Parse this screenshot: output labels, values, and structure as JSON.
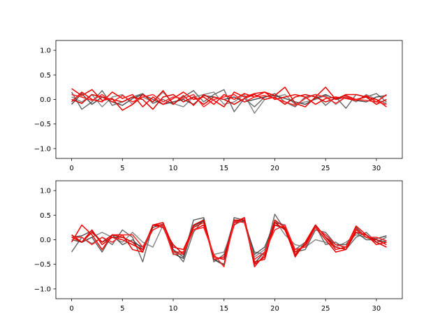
{
  "chart_data": [
    {
      "type": "line",
      "x": [
        0,
        1,
        2,
        3,
        4,
        5,
        6,
        7,
        8,
        9,
        10,
        11,
        12,
        13,
        14,
        15,
        16,
        17,
        18,
        19,
        20,
        21,
        22,
        23,
        24,
        25,
        26,
        27,
        28,
        29,
        30,
        31
      ],
      "xlim": [
        -1.55,
        32.55
      ],
      "ylim": [
        -1.2,
        1.2
      ],
      "xticks": [
        0,
        5,
        10,
        15,
        20,
        25,
        30
      ],
      "yticks": [
        1.0,
        0.5,
        0.0,
        -0.5,
        -1.0
      ],
      "ytick_labels": [
        "1.0",
        "0.5",
        "0.0",
        "−0.5",
        "−1.0"
      ],
      "grid": false,
      "series": [
        {
          "color": "#555555",
          "values": [
            0.15,
            -0.2,
            -0.05,
            0.18,
            -0.12,
            -0.05,
            0.05,
            0.12,
            -0.08,
            0.0,
            -0.1,
            0.05,
            0.18,
            -0.05,
            0.1,
            0.2,
            -0.25,
            0.02,
            -0.15,
            0.05,
            0.12,
            -0.05,
            -0.15,
            0.05,
            0.1,
            -0.12,
            0.05,
            -0.18,
            0.1,
            0.05,
            0.12,
            -0.05
          ]
        },
        {
          "color": "#777777",
          "values": [
            0.05,
            -0.05,
            0.1,
            -0.15,
            0.05,
            0.1,
            -0.1,
            0.05,
            -0.05,
            0.15,
            -0.08,
            -0.15,
            0.05,
            0.1,
            0.15,
            -0.1,
            -0.05,
            0.1,
            -0.28,
            0.0,
            0.05,
            0.1,
            -0.1,
            -0.05,
            0.0,
            0.08,
            -0.1,
            0.05,
            -0.05,
            0.1,
            0.0,
            -0.08
          ]
        },
        {
          "color": "#333333",
          "values": [
            -0.1,
            0.12,
            -0.1,
            0.05,
            -0.05,
            -0.12,
            0.02,
            0.1,
            0.0,
            -0.1,
            -0.05,
            0.0,
            -0.1,
            0.08,
            0.05,
            0.0,
            0.05,
            -0.05,
            0.0,
            0.05,
            0.08,
            0.02,
            -0.05,
            -0.1,
            0.02,
            0.1,
            0.0,
            0.05,
            -0.02,
            -0.05,
            0.05,
            0.08
          ]
        },
        {
          "color": "#ee0000",
          "values": [
            0.22,
            0.08,
            0.2,
            -0.02,
            0.02,
            -0.22,
            -0.1,
            0.1,
            -0.05,
            0.18,
            -0.1,
            0.08,
            -0.12,
            0.1,
            -0.02,
            -0.15,
            0.15,
            0.05,
            0.12,
            0.15,
            0.08,
            0.25,
            -0.08,
            -0.15,
            0.05,
            0.25,
            0.0,
            0.1,
            0.1,
            0.05,
            0.0,
            -0.15
          ]
        },
        {
          "color": "#ff0000",
          "values": [
            -0.05,
            0.15,
            0.0,
            -0.05,
            0.15,
            0.02,
            0.1,
            -0.15,
            0.05,
            -0.1,
            0.02,
            0.15,
            0.0,
            0.05,
            -0.1,
            0.1,
            0.0,
            0.12,
            0.05,
            0.15,
            0.0,
            0.05,
            0.1,
            0.05,
            -0.1,
            0.02,
            0.05,
            0.02,
            -0.02,
            0.08,
            -0.05,
            0.1
          ]
        },
        {
          "color": "#dd0000",
          "values": [
            0.0,
            -0.08,
            0.1,
            0.05,
            0.0,
            -0.05,
            0.05,
            0.0,
            -0.2,
            0.05,
            0.1,
            -0.05,
            0.05,
            -0.1,
            0.05,
            0.0,
            -0.1,
            0.02,
            0.1,
            0.0,
            0.05,
            -0.1,
            0.05,
            0.1,
            0.05,
            -0.05,
            0.02,
            0.08,
            0.0,
            0.05,
            -0.1,
            0.0
          ]
        },
        {
          "color": "#ff2222",
          "values": [
            0.1,
            0.05,
            -0.02,
            0.1,
            -0.05,
            0.08,
            -0.05,
            0.05,
            0.1,
            -0.05,
            0.05,
            0.02,
            0.1,
            -0.15,
            0.0,
            0.05,
            0.1,
            -0.05,
            0.05,
            0.08,
            0.02,
            -0.05,
            -0.12,
            0.02,
            0.1,
            0.05,
            -0.08,
            0.05,
            0.0,
            -0.02,
            -0.05,
            -0.1
          ]
        }
      ]
    },
    {
      "type": "line",
      "x": [
        0,
        1,
        2,
        3,
        4,
        5,
        6,
        7,
        8,
        9,
        10,
        11,
        12,
        13,
        14,
        15,
        16,
        17,
        18,
        19,
        20,
        21,
        22,
        23,
        24,
        25,
        26,
        27,
        28,
        29,
        30,
        31
      ],
      "xlim": [
        -1.55,
        32.55
      ],
      "ylim": [
        -1.2,
        1.2
      ],
      "xticks": [
        0,
        5,
        10,
        15,
        20,
        25,
        30
      ],
      "yticks": [
        1.0,
        0.5,
        0.0,
        -0.5,
        -1.0
      ],
      "ytick_labels": [
        "1.0",
        "0.5",
        "0.0",
        "−0.5",
        "−1.0"
      ],
      "grid": false,
      "series": [
        {
          "color": "#555555",
          "values": [
            -0.25,
            0.05,
            -0.08,
            0.05,
            -0.1,
            0.2,
            0.05,
            -0.45,
            0.3,
            0.25,
            -0.2,
            -0.45,
            0.15,
            0.42,
            -0.45,
            -0.3,
            0.4,
            0.35,
            -0.25,
            -0.3,
            0.52,
            0.2,
            -0.2,
            -0.05,
            0.28,
            -0.1,
            -0.05,
            -0.2,
            0.05,
            0.15,
            -0.05,
            0.05
          ]
        },
        {
          "color": "#777777",
          "values": [
            0.1,
            -0.05,
            0.05,
            0.15,
            0.05,
            -0.05,
            0.15,
            -0.05,
            -0.15,
            0.3,
            -0.25,
            -0.3,
            0.2,
            0.3,
            -0.3,
            -0.25,
            0.3,
            0.4,
            -0.35,
            -0.2,
            0.4,
            0.1,
            -0.1,
            -0.15,
            0.0,
            -0.05,
            -0.15,
            -0.05,
            0.1,
            0.05,
            -0.05,
            -0.02
          ]
        },
        {
          "color": "#333333",
          "values": [
            0.05,
            0.08,
            0.18,
            -0.05,
            0.05,
            0.05,
            -0.05,
            -0.15,
            0.25,
            0.32,
            -0.28,
            -0.38,
            0.28,
            0.38,
            -0.4,
            -0.5,
            0.35,
            0.38,
            -0.48,
            -0.25,
            0.3,
            0.22,
            -0.32,
            -0.05,
            0.3,
            0.05,
            -0.1,
            -0.15,
            0.25,
            0.05,
            0.02,
            0.08
          ]
        },
        {
          "color": "#444444",
          "values": [
            0.0,
            -0.05,
            0.05,
            -0.25,
            0.1,
            -0.1,
            0.0,
            -0.2,
            0.2,
            0.3,
            -0.2,
            -0.35,
            0.4,
            0.45,
            -0.4,
            -0.52,
            0.45,
            0.4,
            -0.3,
            -0.15,
            0.35,
            0.3,
            -0.25,
            -0.2,
            0.2,
            0.15,
            -0.1,
            -0.1,
            0.15,
            0.0,
            0.0,
            -0.05
          ]
        },
        {
          "color": "#ee0000",
          "values": [
            0.05,
            -0.05,
            0.2,
            -0.1,
            0.05,
            0.0,
            -0.1,
            -0.2,
            0.3,
            0.35,
            -0.15,
            -0.2,
            0.25,
            0.35,
            -0.4,
            -0.35,
            0.35,
            0.45,
            -0.5,
            -0.35,
            0.3,
            0.25,
            -0.25,
            -0.1,
            0.25,
            0.0,
            -0.25,
            -0.2,
            0.2,
            0.05,
            0.0,
            -0.1
          ]
        },
        {
          "color": "#ff0000",
          "values": [
            -0.05,
            0.3,
            0.1,
            -0.2,
            0.1,
            0.1,
            -0.2,
            -0.25,
            0.3,
            0.3,
            -0.25,
            -0.25,
            0.2,
            0.3,
            -0.35,
            -0.4,
            0.3,
            0.45,
            -0.55,
            -0.3,
            0.4,
            0.25,
            -0.35,
            -0.05,
            0.3,
            0.05,
            -0.2,
            -0.15,
            0.28,
            0.1,
            -0.1,
            -0.05
          ]
        },
        {
          "color": "#dd0000",
          "values": [
            0.1,
            -0.05,
            0.15,
            -0.05,
            0.1,
            0.05,
            -0.05,
            -0.25,
            0.3,
            0.25,
            -0.1,
            -0.3,
            0.3,
            0.4,
            -0.35,
            -0.4,
            0.4,
            0.4,
            -0.45,
            -0.4,
            0.35,
            0.2,
            -0.3,
            -0.1,
            0.3,
            0.05,
            -0.15,
            -0.2,
            0.15,
            0.1,
            -0.05,
            -0.15
          ]
        },
        {
          "color": "#ff2222",
          "values": [
            0.05,
            0.05,
            -0.1,
            0.05,
            -0.05,
            0.1,
            0.1,
            -0.15,
            0.2,
            0.3,
            -0.3,
            -0.28,
            0.2,
            0.25,
            -0.3,
            -0.55,
            0.38,
            0.35,
            -0.4,
            -0.25,
            0.2,
            0.3,
            -0.2,
            -0.15,
            0.25,
            0.1,
            -0.1,
            -0.15,
            0.22,
            0.05,
            0.05,
            -0.02
          ]
        }
      ]
    }
  ]
}
